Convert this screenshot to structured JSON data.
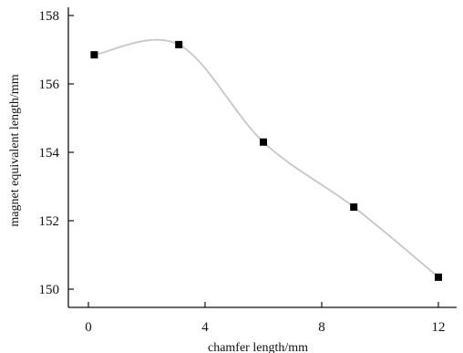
{
  "chart_data": {
    "type": "line",
    "title": "",
    "xlabel": "chamfer length/mm",
    "ylabel": "magnet equivalent length/mm",
    "xlim": [
      -0.5,
      13
    ],
    "ylim": [
      149.5,
      158
    ],
    "x_ticks": [
      0,
      4,
      8,
      12
    ],
    "y_ticks": [
      150,
      152,
      154,
      156,
      158
    ],
    "x_tick_labels": [
      "0",
      "4",
      "8",
      "12"
    ],
    "y_tick_labels": [
      "150",
      "152",
      "154",
      "156",
      "158"
    ],
    "grid": false,
    "legend": "none",
    "smooth": true,
    "line_color": "#c6c6c6",
    "marker_color": "#000000",
    "series": [
      {
        "x": [
          0.2,
          3.1,
          6.0,
          9.1,
          12.0
        ],
        "y": [
          156.85,
          157.15,
          154.3,
          152.4,
          150.35
        ]
      }
    ]
  }
}
